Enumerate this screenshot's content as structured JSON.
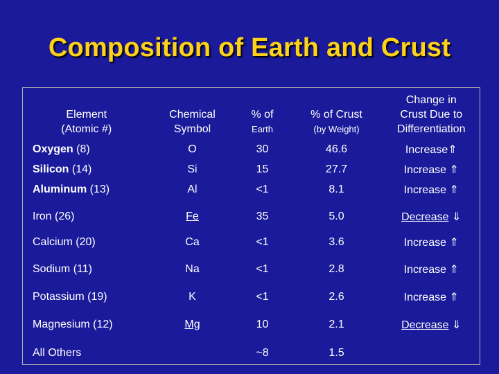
{
  "title": "Composition of Earth and Crust",
  "headers": {
    "element_line1": "Element",
    "element_line2": "(Atomic #)",
    "symbol_line1": "Chemical",
    "symbol_line2": "Symbol",
    "earth_line1": "% of",
    "earth_line2": "Earth",
    "crust_line1": "% of Crust",
    "crust_line2": "(by Weight)",
    "change_line1": "Change in",
    "change_line2": "Crust Due to",
    "change_line3": "Differentiation"
  },
  "rows": [
    {
      "name": "Oxygen",
      "atomic": "(8)",
      "symbol": "O",
      "earth": "30",
      "crust": "46.6",
      "change": "Increase",
      "arrow": "⇑"
    },
    {
      "name": "Silicon",
      "atomic": "(14)",
      "symbol": "Si",
      "earth": "15",
      "crust": "27.7",
      "change": "Increase",
      "arrow": "⇑"
    },
    {
      "name": "Aluminum",
      "atomic": "(13)",
      "symbol": "Al",
      "earth": "<1",
      "crust": "8.1",
      "change": "Increase",
      "arrow": "⇑"
    },
    {
      "name": "Iron",
      "atomic": "(26)",
      "symbol": "Fe",
      "earth": "35",
      "crust": "5.0",
      "change": "Decrease",
      "arrow": "⇓"
    },
    {
      "name": "Calcium",
      "atomic": "(20)",
      "symbol": "Ca",
      "earth": "<1",
      "crust": "3.6",
      "change": "Increase",
      "arrow": "⇑"
    },
    {
      "name": "Sodium",
      "atomic": "(11)",
      "symbol": "Na",
      "earth": "<1",
      "crust": "2.8",
      "change": "Increase",
      "arrow": "⇑"
    },
    {
      "name": "Potassium",
      "atomic": "(19)",
      "symbol": "K",
      "earth": "<1",
      "crust": "2.6",
      "change": "Increase",
      "arrow": "⇑"
    },
    {
      "name": "Magnesium",
      "atomic": "(12)",
      "symbol": "Mg",
      "earth": "10",
      "crust": "2.1",
      "change": "Decrease",
      "arrow": "⇓"
    },
    {
      "name": "All Others",
      "atomic": "",
      "symbol": "",
      "earth": "~8",
      "crust": "1.5",
      "change": "",
      "arrow": ""
    }
  ],
  "colors": {
    "background": "#1a1a9a",
    "title": "#ffd21a",
    "text": "#ffffff"
  }
}
